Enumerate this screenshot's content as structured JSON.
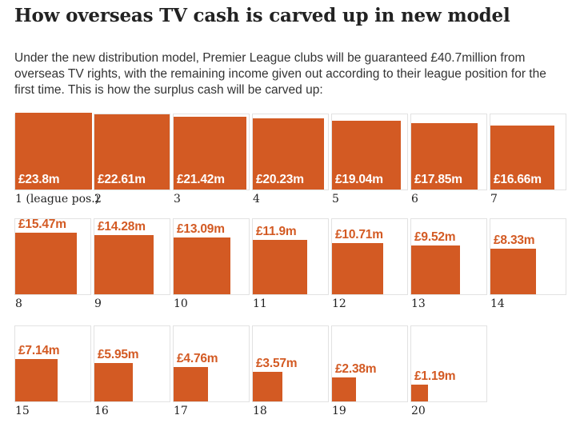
{
  "header": {
    "title": "How overseas TV cash is carved up in new model",
    "subtitle": "Under the new distribution model, Premier League clubs will be guaranteed £40.7million from overseas TV rights, with the remaining income given out according to their league position for the first time. This is how the surplus cash will be carved up:"
  },
  "chart_data": {
    "type": "proportional-area",
    "title": "How overseas TV cash is carved up in new model",
    "unit": "£m",
    "first_position_suffix": " (league pos.)",
    "categories": [
      "1",
      "2",
      "3",
      "4",
      "5",
      "6",
      "7",
      "8",
      "9",
      "10",
      "11",
      "12",
      "13",
      "14",
      "15",
      "16",
      "17",
      "18",
      "19",
      "20"
    ],
    "values": [
      23.8,
      22.61,
      21.42,
      20.23,
      19.04,
      17.85,
      16.66,
      15.47,
      14.28,
      13.09,
      11.9,
      10.71,
      9.52,
      8.33,
      7.14,
      5.95,
      4.76,
      3.57,
      2.38,
      1.19
    ],
    "labels": [
      "£23.8m",
      "£22.61m",
      "£21.42m",
      "£20.23m",
      "£19.04m",
      "£17.85m",
      "£16.66m",
      "£15.47m",
      "£14.28m",
      "£13.09m",
      "£11.9m",
      "£10.71m",
      "£9.52m",
      "£8.33m",
      "£7.14m",
      "£5.95m",
      "£4.76m",
      "£3.57m",
      "£2.38m",
      "£1.19m"
    ],
    "colors": {
      "square": "#d35a23",
      "label_inside": "#ffffff",
      "label_outside": "#d35a23"
    }
  }
}
